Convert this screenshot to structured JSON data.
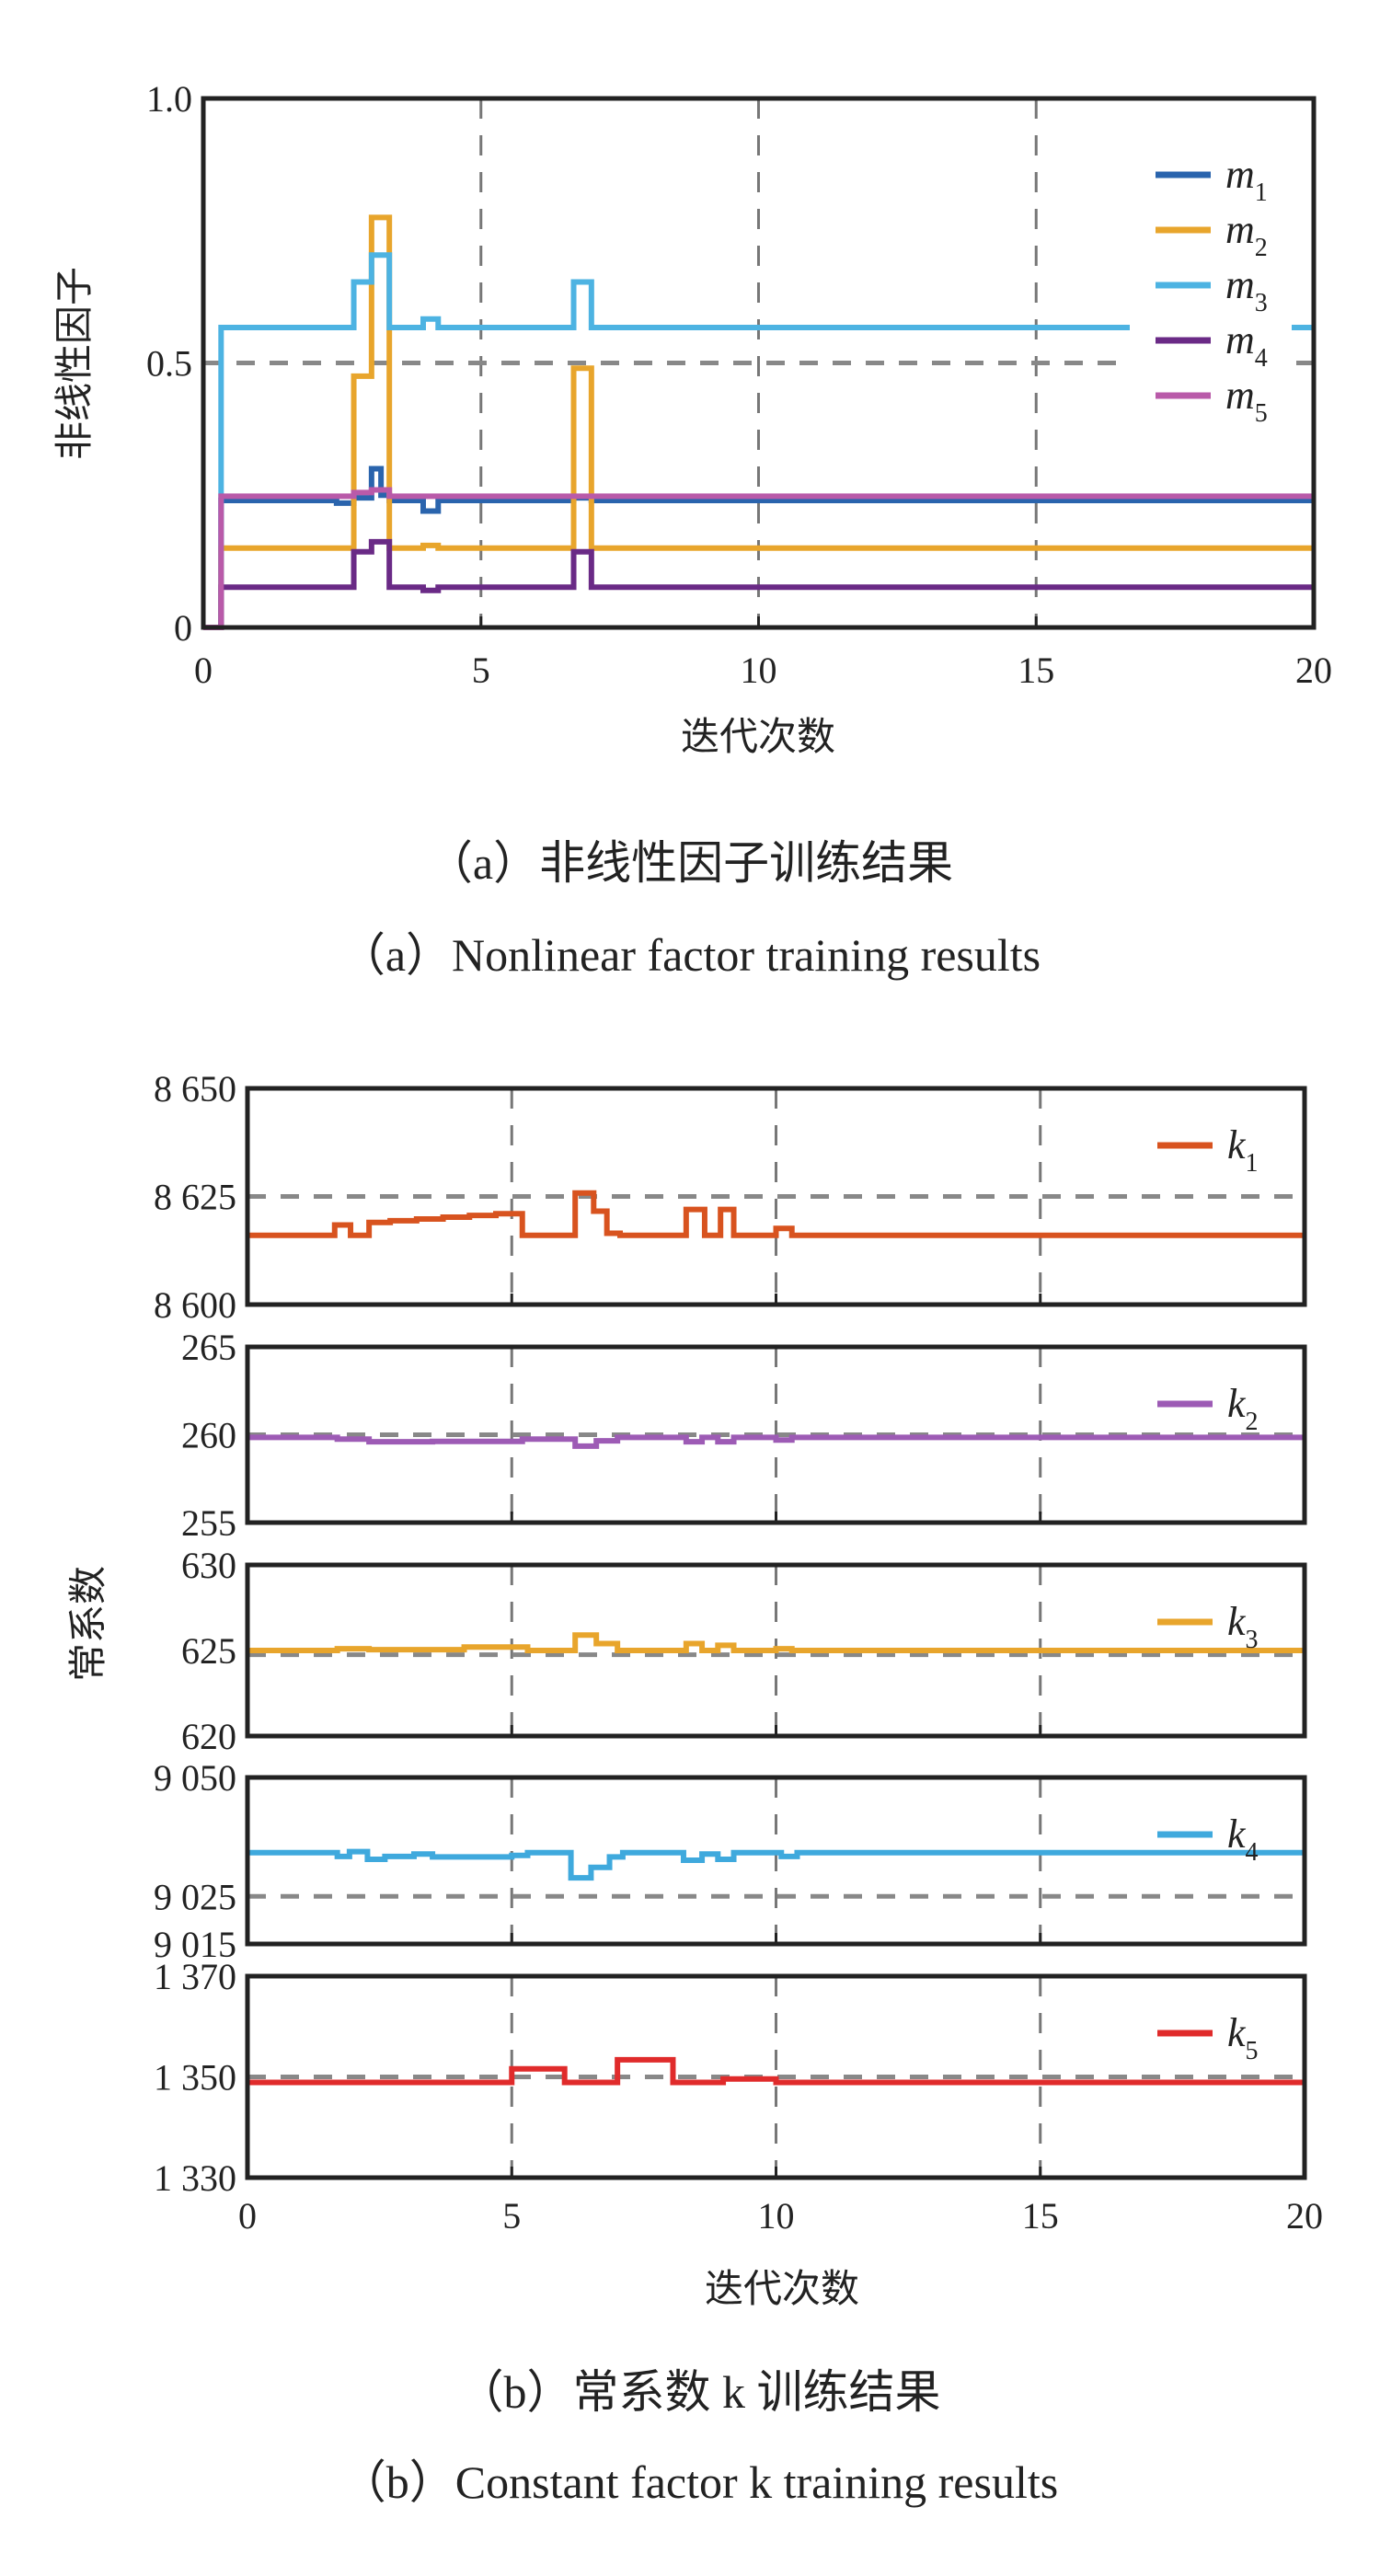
{
  "chart_data": [
    {
      "type": "line",
      "title": "",
      "caption_cn": "（a）非线性因子训练结果",
      "caption_en": "（a）Nonlinear factor training results",
      "xlabel": "迭代次数",
      "ylabel": "非线性因子",
      "xlim": [
        0,
        20
      ],
      "ylim": [
        0,
        1
      ],
      "xticks": [
        0,
        5,
        10,
        15,
        20
      ],
      "xtick_labels": [
        "0",
        "5",
        "10",
        "15",
        "20"
      ],
      "yticks": [
        0,
        0.5,
        1.0
      ],
      "ytick_labels": [
        "0",
        "0.5",
        "1.0"
      ],
      "grid": {
        "x": [
          5,
          10,
          15
        ],
        "y": [
          0.5
        ],
        "style": "dashed"
      },
      "legend_position": "top-right",
      "series": [
        {
          "name": "m",
          "sub": "1",
          "color": "#2a64ad",
          "steps": [
            [
              0,
              0
            ],
            [
              0.32,
              0.24
            ],
            [
              2.4,
              0.235
            ],
            [
              2.71,
              0.245
            ],
            [
              3.03,
              0.3
            ],
            [
              3.2,
              0.25
            ],
            [
              3.35,
              0.24
            ],
            [
              3.96,
              0.22
            ],
            [
              4.23,
              0.24
            ],
            [
              6.67,
              0.245
            ],
            [
              6.99,
              0.24
            ]
          ]
        },
        {
          "name": "m",
          "sub": "2",
          "color": "#e8a52c",
          "steps": [
            [
              0,
              0
            ],
            [
              0.32,
              0.15
            ],
            [
              2.71,
              0.475
            ],
            [
              3.03,
              0.775
            ],
            [
              3.35,
              0.15
            ],
            [
              3.96,
              0.155
            ],
            [
              4.23,
              0.15
            ],
            [
              6.67,
              0.49
            ],
            [
              6.99,
              0.15
            ]
          ]
        },
        {
          "name": "m",
          "sub": "3",
          "color": "#4db3e2",
          "steps": [
            [
              0,
              0
            ],
            [
              0.32,
              0.567
            ],
            [
              2.71,
              0.653
            ],
            [
              3.03,
              0.704
            ],
            [
              3.35,
              0.567
            ],
            [
              3.96,
              0.583
            ],
            [
              4.23,
              0.567
            ],
            [
              6.67,
              0.653
            ],
            [
              6.99,
              0.567
            ]
          ]
        },
        {
          "name": "m",
          "sub": "4",
          "color": "#6a2a86",
          "steps": [
            [
              0,
              0
            ],
            [
              0.32,
              0.076
            ],
            [
              2.71,
              0.143
            ],
            [
              3.03,
              0.162
            ],
            [
              3.35,
              0.076
            ],
            [
              3.96,
              0.07
            ],
            [
              4.23,
              0.076
            ],
            [
              6.67,
              0.143
            ],
            [
              6.99,
              0.076
            ]
          ]
        },
        {
          "name": "m",
          "sub": "5",
          "color": "#b95aa9",
          "steps": [
            [
              0,
              0
            ],
            [
              0.32,
              0.248
            ],
            [
              2.71,
              0.255
            ],
            [
              3.03,
              0.26
            ],
            [
              3.35,
              0.248
            ]
          ]
        }
      ]
    },
    {
      "type": "line",
      "title": "",
      "caption_cn": "（b）常系数 k 训练结果",
      "caption_en": "（b）Constant factor k training results",
      "xlabel": "迭代次数",
      "ylabel": "常系数",
      "xlim": [
        0,
        20
      ],
      "xticks": [
        0,
        5,
        10,
        15,
        20
      ],
      "xtick_labels": [
        "0",
        "5",
        "10",
        "15",
        "20"
      ],
      "legend_position": "top-right",
      "panels": [
        {
          "name": "k",
          "sub": "1",
          "color": "#d8531f",
          "ylim": [
            8600,
            8650
          ],
          "yticks": [
            8600,
            8625,
            8650
          ],
          "ytick_labels": [
            "8 600",
            "8 625",
            "8 650"
          ],
          "ygrid": [
            8625
          ],
          "steps": [
            [
              0,
              8616
            ],
            [
              1.65,
              8618.4
            ],
            [
              1.95,
              8616
            ],
            [
              2.3,
              8619
            ],
            [
              2.7,
              8619.4
            ],
            [
              3.2,
              8619.8
            ],
            [
              3.7,
              8620.2
            ],
            [
              4.2,
              8620.6
            ],
            [
              4.7,
              8621
            ],
            [
              5.2,
              8616
            ],
            [
              6.2,
              8625.8
            ],
            [
              6.55,
              8621.6
            ],
            [
              6.8,
              8616.5
            ],
            [
              7.05,
              8616
            ],
            [
              8.3,
              8622
            ],
            [
              8.65,
              8616
            ],
            [
              8.95,
              8622
            ],
            [
              9.2,
              8616
            ],
            [
              10,
              8617.6
            ],
            [
              10.3,
              8616
            ]
          ]
        },
        {
          "name": "k",
          "sub": "2",
          "color": "#9d5bb5",
          "ylim": [
            255,
            265
          ],
          "yticks": [
            255,
            260,
            265
          ],
          "ytick_labels": [
            "255",
            "260",
            "265"
          ],
          "ygrid": [
            260
          ],
          "steps": [
            [
              0,
              259.85
            ],
            [
              1.7,
              259.75
            ],
            [
              2.3,
              259.6
            ],
            [
              3.5,
              259.62
            ],
            [
              5.2,
              259.75
            ],
            [
              6.2,
              259.35
            ],
            [
              6.6,
              259.65
            ],
            [
              7.0,
              259.85
            ],
            [
              8.3,
              259.6
            ],
            [
              8.6,
              259.85
            ],
            [
              8.9,
              259.6
            ],
            [
              9.2,
              259.85
            ],
            [
              10,
              259.7
            ],
            [
              10.3,
              259.85
            ]
          ]
        },
        {
          "name": "k",
          "sub": "3",
          "color": "#e8a52c",
          "ylim": [
            620,
            630
          ],
          "yticks": [
            620,
            625,
            630
          ],
          "ytick_labels": [
            "620",
            "625",
            "630"
          ],
          "ygrid": [
            624.75
          ],
          "steps": [
            [
              0,
              625.0
            ],
            [
              1.7,
              625.1
            ],
            [
              2.3,
              625.05
            ],
            [
              4.1,
              625.2
            ],
            [
              5.3,
              625.0
            ],
            [
              6.2,
              625.9
            ],
            [
              6.6,
              625.4
            ],
            [
              7.0,
              625.0
            ],
            [
              8.3,
              625.4
            ],
            [
              8.6,
              625.0
            ],
            [
              8.9,
              625.3
            ],
            [
              9.2,
              625.0
            ],
            [
              10,
              625.1
            ],
            [
              10.3,
              625.0
            ]
          ]
        },
        {
          "name": "k",
          "sub": "4",
          "color": "#3fa9dd",
          "ylim": [
            9015,
            9050
          ],
          "yticks": [
            9015,
            9025,
            9050
          ],
          "ytick_labels": [
            "9 015",
            "9 025",
            "9 050"
          ],
          "ygrid": [
            9025
          ],
          "steps": [
            [
              0,
              9034.2
            ],
            [
              1.7,
              9033.4
            ],
            [
              1.93,
              9034.4
            ],
            [
              2.27,
              9032.8
            ],
            [
              2.6,
              9033.4
            ],
            [
              3.15,
              9033.9
            ],
            [
              3.5,
              9033.3
            ],
            [
              5.0,
              9033.6
            ],
            [
              5.3,
              9034.2
            ],
            [
              6.12,
              9028.9
            ],
            [
              6.5,
              9031.1
            ],
            [
              6.85,
              9033.3
            ],
            [
              7.1,
              9034.2
            ],
            [
              8.25,
              9032.6
            ],
            [
              8.6,
              9033.9
            ],
            [
              8.9,
              9032.8
            ],
            [
              9.2,
              9034.2
            ],
            [
              10.1,
              9033.4
            ],
            [
              10.4,
              9034.2
            ]
          ]
        },
        {
          "name": "k",
          "sub": "5",
          "color": "#e02b2b",
          "ylim": [
            1330,
            1370
          ],
          "yticks": [
            1330,
            1350,
            1370
          ],
          "ytick_labels": [
            "1 330",
            "1 350",
            "1 370"
          ],
          "ygrid": [
            1350
          ],
          "steps": [
            [
              0,
              1348.9
            ],
            [
              5.0,
              1351.6
            ],
            [
              6.0,
              1348.9
            ],
            [
              7.0,
              1353.4
            ],
            [
              8.05,
              1348.9
            ],
            [
              9.0,
              1349.6
            ],
            [
              10.0,
              1348.9
            ]
          ]
        }
      ]
    }
  ]
}
